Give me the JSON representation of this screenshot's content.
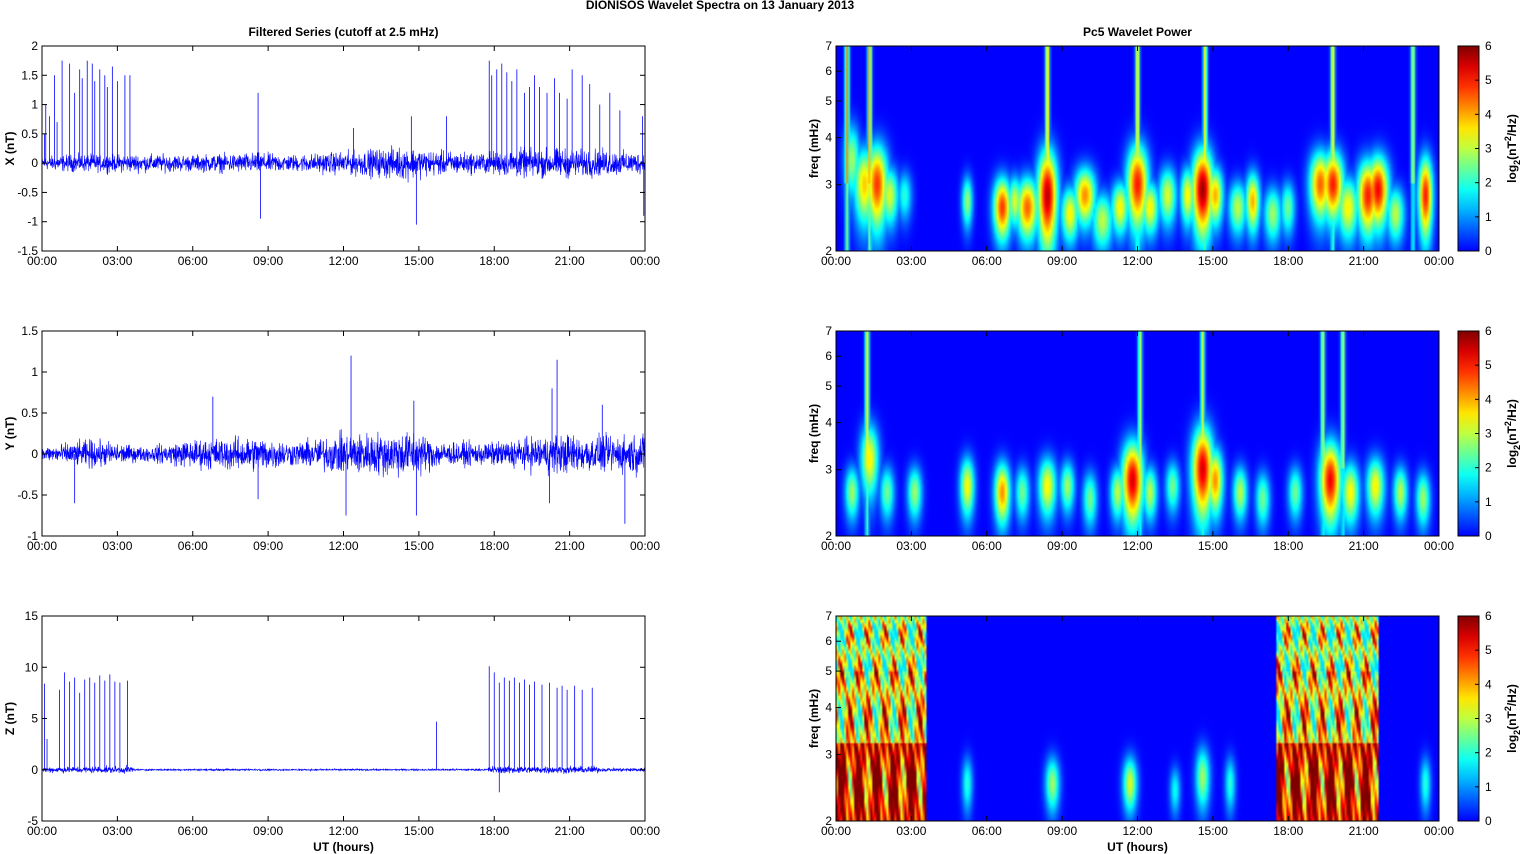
{
  "figure": {
    "title": "DIONISOS Wavelet Spectra on 13 January   2013"
  },
  "chart_data": [
    {
      "type": "line",
      "id": "ts-x",
      "title": "Filtered Series (cutoff at 2.5 mHz)",
      "xlabel": "",
      "ylabel": "X (nT)",
      "x_range": [
        0,
        24
      ],
      "ylim": [
        -1.5,
        2
      ],
      "y_ticks": [
        "-1.5",
        "-1",
        "-0.5",
        "0",
        "0.5",
        "1",
        "1.5",
        "2"
      ],
      "x_ticks": [
        "00:00",
        "03:00",
        "06:00",
        "09:00",
        "12:00",
        "15:00",
        "18:00",
        "21:00",
        "00:00"
      ],
      "grid": false,
      "line_color": "#0000ff",
      "envelope": [
        [
          0,
          0.15
        ],
        [
          0.8,
          0.2
        ],
        [
          3.6,
          0.22
        ],
        [
          6,
          0.2
        ],
        [
          8.6,
          0.25
        ],
        [
          10,
          0.2
        ],
        [
          12.5,
          0.3
        ],
        [
          14.5,
          0.4
        ],
        [
          15.6,
          0.3
        ],
        [
          17.5,
          0.25
        ],
        [
          19,
          0.35
        ],
        [
          21.5,
          0.35
        ],
        [
          24,
          0.25
        ]
      ],
      "spikes": [
        [
          0.1,
          0.5
        ],
        [
          0.15,
          1.0
        ],
        [
          0.3,
          0.8
        ],
        [
          0.5,
          1.5
        ],
        [
          0.6,
          0.7
        ],
        [
          0.8,
          1.75
        ],
        [
          1.1,
          1.7
        ],
        [
          1.3,
          1.2
        ],
        [
          1.5,
          1.6
        ],
        [
          1.6,
          1.45
        ],
        [
          1.8,
          1.75
        ],
        [
          2.0,
          1.7
        ],
        [
          2.1,
          1.4
        ],
        [
          2.3,
          1.6
        ],
        [
          2.5,
          1.5
        ],
        [
          2.6,
          1.3
        ],
        [
          2.8,
          1.65
        ],
        [
          3.0,
          1.4
        ],
        [
          3.3,
          1.5
        ],
        [
          3.5,
          1.5
        ],
        [
          8.6,
          1.2
        ],
        [
          8.7,
          -0.95
        ],
        [
          12.4,
          0.6
        ],
        [
          14.7,
          0.8
        ],
        [
          14.9,
          -1.05
        ],
        [
          16.1,
          0.8
        ],
        [
          17.8,
          1.75
        ],
        [
          17.9,
          1.5
        ],
        [
          18.1,
          1.6
        ],
        [
          18.3,
          1.7
        ],
        [
          18.5,
          1.55
        ],
        [
          18.7,
          1.4
        ],
        [
          18.9,
          1.6
        ],
        [
          19.2,
          1.2
        ],
        [
          19.4,
          1.3
        ],
        [
          19.6,
          1.5
        ],
        [
          19.8,
          1.3
        ],
        [
          20.1,
          1.2
        ],
        [
          20.4,
          1.45
        ],
        [
          20.6,
          1.2
        ],
        [
          20.9,
          1.1
        ],
        [
          21.1,
          1.6
        ],
        [
          21.5,
          1.5
        ],
        [
          21.8,
          1.35
        ],
        [
          22.2,
          1.0
        ],
        [
          22.6,
          1.2
        ],
        [
          23.0,
          0.9
        ],
        [
          23.9,
          0.8
        ],
        [
          23.95,
          -0.9
        ]
      ]
    },
    {
      "type": "line",
      "id": "ts-y",
      "title": "",
      "xlabel": "",
      "ylabel": "Y (nT)",
      "x_range": [
        0,
        24
      ],
      "ylim": [
        -1,
        1.5
      ],
      "y_ticks": [
        "-1",
        "-0.5",
        "0",
        "0.5",
        "1",
        "1.5"
      ],
      "x_ticks": [
        "00:00",
        "03:00",
        "06:00",
        "09:00",
        "12:00",
        "15:00",
        "18:00",
        "21:00",
        "00:00"
      ],
      "grid": false,
      "line_color": "#0000ff",
      "envelope": [
        [
          0,
          0.12
        ],
        [
          2,
          0.25
        ],
        [
          4,
          0.12
        ],
        [
          6,
          0.25
        ],
        [
          8.7,
          0.3
        ],
        [
          10,
          0.2
        ],
        [
          12,
          0.35
        ],
        [
          14.8,
          0.4
        ],
        [
          16,
          0.2
        ],
        [
          18,
          0.2
        ],
        [
          20.5,
          0.35
        ],
        [
          22,
          0.3
        ],
        [
          24,
          0.35
        ]
      ],
      "spikes": [
        [
          1.3,
          -0.6
        ],
        [
          6.8,
          0.7
        ],
        [
          8.6,
          -0.55
        ],
        [
          12.3,
          1.2
        ],
        [
          12.1,
          -0.75
        ],
        [
          14.8,
          0.65
        ],
        [
          14.9,
          -0.75
        ],
        [
          20.5,
          1.15
        ],
        [
          20.3,
          0.8
        ],
        [
          20.2,
          -0.6
        ],
        [
          22.3,
          0.6
        ],
        [
          23.2,
          -0.85
        ],
        [
          24,
          0.6
        ]
      ]
    },
    {
      "type": "line",
      "id": "ts-z",
      "title": "",
      "xlabel": "UT (hours)",
      "ylabel": "Z (nT)",
      "x_range": [
        0,
        24
      ],
      "ylim": [
        -5,
        15
      ],
      "y_ticks": [
        "-5",
        "0",
        "5",
        "10",
        "15"
      ],
      "x_ticks": [
        "00:00",
        "03:00",
        "06:00",
        "09:00",
        "12:00",
        "15:00",
        "18:00",
        "21:00",
        "00:00"
      ],
      "grid": false,
      "line_color": "#0000ff",
      "envelope": [
        [
          0,
          0.4
        ],
        [
          3.6,
          0.5
        ],
        [
          3.7,
          0.12
        ],
        [
          17.7,
          0.12
        ],
        [
          17.8,
          0.5
        ],
        [
          22.1,
          0.5
        ],
        [
          22.2,
          0.25
        ],
        [
          24,
          0.3
        ]
      ],
      "spikes": [
        [
          0.1,
          8.4
        ],
        [
          0.2,
          3
        ],
        [
          0.7,
          7.8
        ],
        [
          0.9,
          9.5
        ],
        [
          1.1,
          8.6
        ],
        [
          1.3,
          9.0
        ],
        [
          1.5,
          7.5
        ],
        [
          1.7,
          8.8
        ],
        [
          1.9,
          9.0
        ],
        [
          2.1,
          8.5
        ],
        [
          2.3,
          9.2
        ],
        [
          2.5,
          8.7
        ],
        [
          2.7,
          9.3
        ],
        [
          2.9,
          8.6
        ],
        [
          3.1,
          8.5
        ],
        [
          3.4,
          8.7
        ],
        [
          15.7,
          4.7
        ],
        [
          17.8,
          10.1
        ],
        [
          18.0,
          9.5
        ],
        [
          18.2,
          8.5
        ],
        [
          18.4,
          9.0
        ],
        [
          18.6,
          8.7
        ],
        [
          18.8,
          9.0
        ],
        [
          19.0,
          8.5
        ],
        [
          19.2,
          8.8
        ],
        [
          19.4,
          8.3
        ],
        [
          19.6,
          8.6
        ],
        [
          19.9,
          8.3
        ],
        [
          20.2,
          8.5
        ],
        [
          20.5,
          8.0
        ],
        [
          20.7,
          8.2
        ],
        [
          20.9,
          7.8
        ],
        [
          21.2,
          8.2
        ],
        [
          21.5,
          7.8
        ],
        [
          21.9,
          8.0
        ],
        [
          18.2,
          -2.2
        ]
      ]
    },
    {
      "type": "heatmap",
      "id": "wp-x",
      "title": "Pc5 Wavelet Power",
      "xlabel": "",
      "ylabel": "freq (mHz)",
      "x_range": [
        0,
        24
      ],
      "y_range_mhz": [
        2,
        7
      ],
      "y_scale": "log",
      "y_ticks": [
        "2",
        "3",
        "4",
        "5",
        "6",
        "7"
      ],
      "x_ticks": [
        "00:00",
        "03:00",
        "06:00",
        "09:00",
        "12:00",
        "15:00",
        "18:00",
        "21:00",
        "00:00"
      ],
      "colorbar": {
        "label": "log2(nT2/Hz)",
        "range": [
          0,
          6
        ],
        "ticks": [
          "0",
          "1",
          "2",
          "3",
          "4",
          "5",
          "6"
        ],
        "colormap": "jet"
      },
      "blobs": [
        [
          0.6,
          3.5,
          0.22,
          0.55,
          2.8
        ],
        [
          1.1,
          3.0,
          0.3,
          0.5,
          3.8
        ],
        [
          1.6,
          3.0,
          0.3,
          0.55,
          4.8
        ],
        [
          2.1,
          2.8,
          0.25,
          0.35,
          3.2
        ],
        [
          2.7,
          2.8,
          0.2,
          0.3,
          2.0
        ],
        [
          5.2,
          2.7,
          0.15,
          0.3,
          2.8
        ],
        [
          6.6,
          2.6,
          0.25,
          0.35,
          4.8
        ],
        [
          7.1,
          2.7,
          0.2,
          0.3,
          3.2
        ],
        [
          7.6,
          2.6,
          0.3,
          0.35,
          4.5
        ],
        [
          8.4,
          2.8,
          0.28,
          0.6,
          5.6
        ],
        [
          9.3,
          2.5,
          0.25,
          0.3,
          3.5
        ],
        [
          9.9,
          2.8,
          0.3,
          0.35,
          4.2
        ],
        [
          10.6,
          2.4,
          0.3,
          0.3,
          3.0
        ],
        [
          11.3,
          2.6,
          0.25,
          0.3,
          3.5
        ],
        [
          12.0,
          3.0,
          0.3,
          0.55,
          5.0
        ],
        [
          12.5,
          2.6,
          0.25,
          0.3,
          3.5
        ],
        [
          13.2,
          2.8,
          0.25,
          0.35,
          3.2
        ],
        [
          14.0,
          2.8,
          0.2,
          0.35,
          3.5
        ],
        [
          14.6,
          2.9,
          0.3,
          0.55,
          5.8
        ],
        [
          15.1,
          2.8,
          0.22,
          0.35,
          4.0
        ],
        [
          16.0,
          2.6,
          0.25,
          0.3,
          3.0
        ],
        [
          16.6,
          2.7,
          0.2,
          0.35,
          4.0
        ],
        [
          17.4,
          2.5,
          0.25,
          0.3,
          2.8
        ],
        [
          18.0,
          2.6,
          0.2,
          0.3,
          2.5
        ],
        [
          19.3,
          3.0,
          0.3,
          0.45,
          4.5
        ],
        [
          19.8,
          3.0,
          0.3,
          0.45,
          5.0
        ],
        [
          20.4,
          2.6,
          0.3,
          0.35,
          3.5
        ],
        [
          21.2,
          2.8,
          0.3,
          0.45,
          5.0
        ],
        [
          21.6,
          2.9,
          0.3,
          0.45,
          5.2
        ],
        [
          22.3,
          2.5,
          0.25,
          0.3,
          3.0
        ],
        [
          23.5,
          2.8,
          0.2,
          0.5,
          5.0
        ]
      ],
      "streaks": [
        [
          0.4,
          4.2
        ],
        [
          1.3,
          4.0
        ],
        [
          8.4,
          3.8
        ],
        [
          12.0,
          3.6
        ],
        [
          14.7,
          3.5
        ],
        [
          19.8,
          3.6
        ],
        [
          23.0,
          3.0
        ]
      ]
    },
    {
      "type": "heatmap",
      "id": "wp-y",
      "title": "",
      "xlabel": "",
      "ylabel": "freq (mHz)",
      "x_range": [
        0,
        24
      ],
      "y_range_mhz": [
        2,
        7
      ],
      "y_scale": "log",
      "y_ticks": [
        "2",
        "3",
        "4",
        "5",
        "6",
        "7"
      ],
      "x_ticks": [
        "00:00",
        "03:00",
        "06:00",
        "09:00",
        "12:00",
        "15:00",
        "18:00",
        "21:00",
        "00:00"
      ],
      "colorbar": {
        "label": "log2(nT2/Hz)",
        "range": [
          0,
          6
        ],
        "ticks": [
          "0",
          "1",
          "2",
          "3",
          "4",
          "5",
          "6"
        ],
        "colormap": "jet"
      },
      "blobs": [
        [
          0.6,
          2.6,
          0.2,
          0.3,
          2.8
        ],
        [
          1.3,
          3.2,
          0.25,
          0.5,
          3.5
        ],
        [
          2.0,
          2.6,
          0.2,
          0.3,
          2.5
        ],
        [
          3.1,
          2.6,
          0.2,
          0.3,
          2.8
        ],
        [
          5.2,
          2.7,
          0.2,
          0.35,
          3.5
        ],
        [
          6.6,
          2.6,
          0.22,
          0.35,
          4.2
        ],
        [
          7.4,
          2.6,
          0.2,
          0.3,
          2.5
        ],
        [
          8.4,
          2.7,
          0.25,
          0.35,
          3.5
        ],
        [
          9.2,
          2.7,
          0.2,
          0.3,
          2.8
        ],
        [
          10.1,
          2.5,
          0.2,
          0.3,
          2.5
        ],
        [
          11.2,
          2.6,
          0.2,
          0.3,
          3.0
        ],
        [
          11.8,
          2.8,
          0.3,
          0.5,
          5.4
        ],
        [
          12.5,
          2.6,
          0.2,
          0.3,
          3.0
        ],
        [
          13.4,
          2.7,
          0.2,
          0.3,
          2.5
        ],
        [
          14.6,
          3.0,
          0.3,
          0.6,
          5.4
        ],
        [
          15.1,
          2.8,
          0.22,
          0.4,
          4.2
        ],
        [
          16.1,
          2.6,
          0.2,
          0.3,
          3.0
        ],
        [
          17.0,
          2.5,
          0.2,
          0.3,
          2.5
        ],
        [
          18.3,
          2.6,
          0.2,
          0.3,
          2.5
        ],
        [
          19.7,
          2.8,
          0.3,
          0.5,
          5.2
        ],
        [
          20.5,
          2.6,
          0.25,
          0.35,
          3.5
        ],
        [
          21.5,
          2.7,
          0.25,
          0.35,
          3.5
        ],
        [
          22.5,
          2.6,
          0.2,
          0.3,
          3.0
        ],
        [
          23.4,
          2.5,
          0.2,
          0.3,
          2.8
        ]
      ],
      "streaks": [
        [
          1.2,
          3.5
        ],
        [
          12.1,
          3.0
        ],
        [
          14.6,
          3.2
        ],
        [
          19.4,
          3.0
        ],
        [
          20.2,
          3.0
        ]
      ]
    },
    {
      "type": "heatmap",
      "id": "wp-z",
      "title": "",
      "xlabel": "UT (hours)",
      "ylabel": "freq (mHz)",
      "x_range": [
        0,
        24
      ],
      "y_range_mhz": [
        2,
        7
      ],
      "y_scale": "log",
      "y_ticks": [
        "2",
        "3",
        "4",
        "5",
        "6",
        "7"
      ],
      "x_ticks": [
        "00:00",
        "03:00",
        "06:00",
        "09:00",
        "12:00",
        "15:00",
        "18:00",
        "21:00",
        "00:00"
      ],
      "colorbar": {
        "label": "log2(nT2/Hz)",
        "range": [
          0,
          6
        ],
        "ticks": [
          "0",
          "1",
          "2",
          "3",
          "4",
          "5",
          "6"
        ],
        "colormap": "jet"
      },
      "active_bands": [
        [
          0.0,
          3.6
        ],
        [
          17.5,
          21.6
        ]
      ],
      "blobs": [
        [
          5.2,
          2.5,
          0.15,
          0.3,
          2.0
        ],
        [
          8.6,
          2.5,
          0.2,
          0.3,
          2.8
        ],
        [
          11.7,
          2.5,
          0.2,
          0.3,
          3.2
        ],
        [
          13.5,
          2.4,
          0.15,
          0.25,
          1.8
        ],
        [
          14.6,
          2.6,
          0.2,
          0.35,
          2.8
        ],
        [
          15.7,
          2.5,
          0.15,
          0.3,
          2.0
        ],
        [
          23.5,
          2.5,
          0.15,
          0.3,
          2.0
        ]
      ]
    }
  ]
}
